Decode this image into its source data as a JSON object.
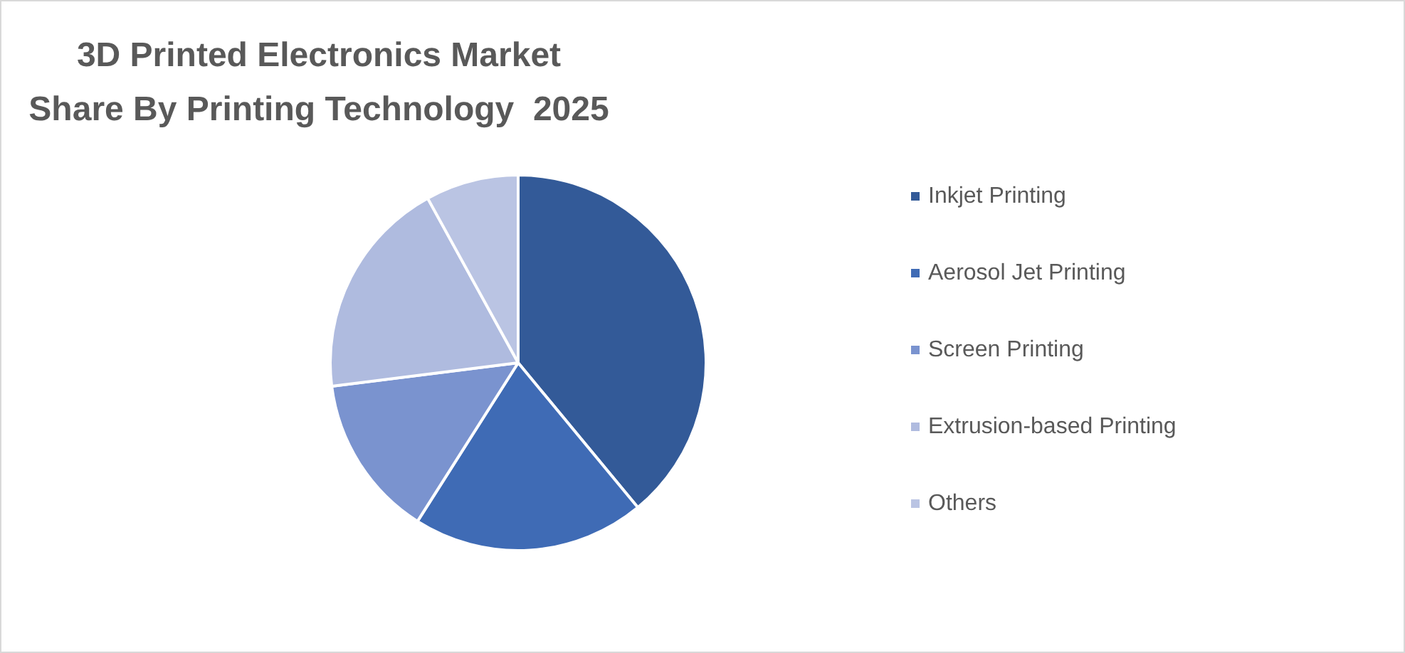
{
  "chart_data": {
    "type": "pie",
    "title": "3D Printed Electronics Market Share By Printing Technology  2025",
    "categories": [
      "Inkjet Printing",
      "Aerosol Jet Printing",
      "Screen Printing",
      "Extrusion-based Printing",
      "Others"
    ],
    "values": [
      39,
      20,
      14,
      19,
      8
    ],
    "colors": [
      "#335a98",
      "#3f6bb5",
      "#7a93cf",
      "#afbbdf",
      "#bac4e3"
    ],
    "legend": "right"
  }
}
